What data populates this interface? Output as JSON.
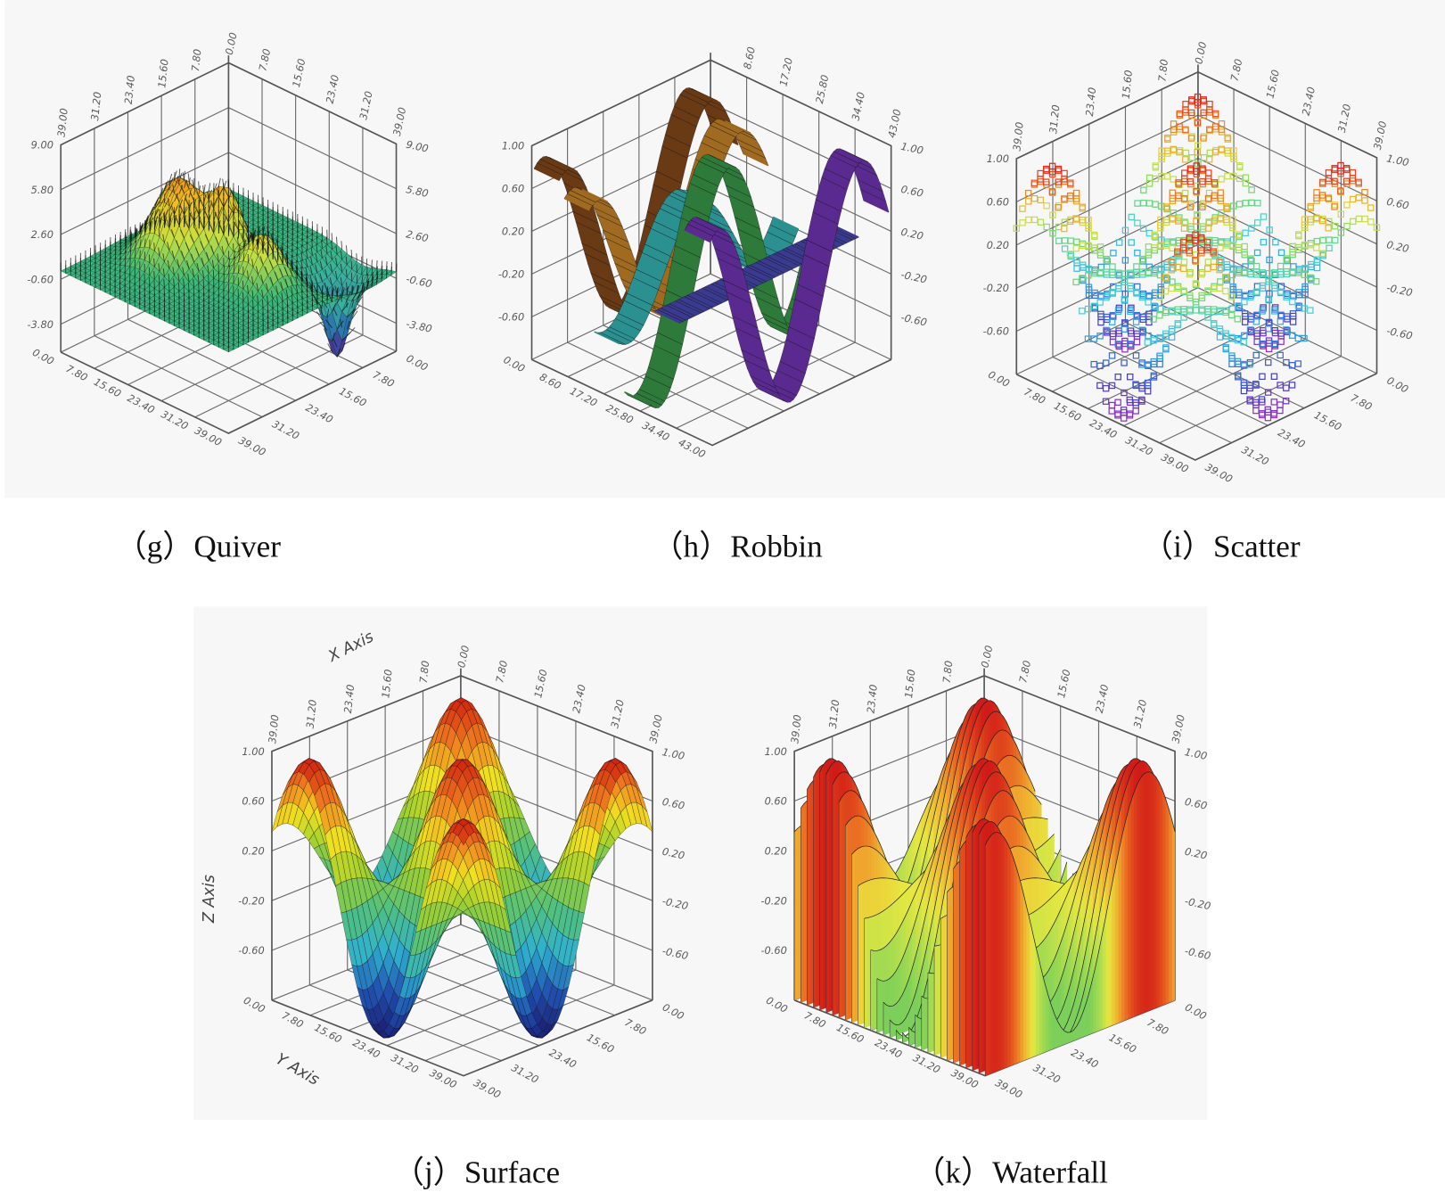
{
  "chart_data": [
    {
      "panel": "g",
      "caption": "（g）Quiver",
      "type": "quiver3d",
      "x_range": [
        0,
        39
      ],
      "y_range": [
        0,
        39
      ],
      "zlim": [
        -5.8,
        9.0
      ],
      "back_left_ticks": [
        "7.80",
        "15.60",
        "23.40",
        "31.20",
        "39.00"
      ],
      "back_right_ticks": [
        "0.00",
        "7.80",
        "15.60",
        "23.40",
        "31.20",
        "39.00"
      ],
      "front_left_ticks": [
        "0.00",
        "7.80",
        "15.60",
        "23.40",
        "31.20",
        "39.00"
      ],
      "front_right_ticks": [
        "0.00",
        "7.80",
        "15.60",
        "23.40",
        "31.20",
        "39.00"
      ],
      "z_ticks": [
        "9.00",
        "5.80",
        "2.60",
        "-0.60",
        "-3.80"
      ],
      "z_ticks_right": [
        "9.00",
        "5.80",
        "2.60",
        "-0.60",
        "-3.80"
      ],
      "bumps": [
        {
          "x": 11.7,
          "y": 23.4,
          "z": 6.0,
          "sigma": 4.3
        },
        {
          "x": 17.5,
          "y": 17.5,
          "z": 4.3,
          "sigma": 2.6
        },
        {
          "x": 27.3,
          "y": 19.5,
          "z": 3.7,
          "sigma": 3.5
        },
        {
          "x": 31.2,
          "y": 6.0,
          "z": -2.5,
          "sigma": 4.0
        },
        {
          "x": 33.0,
          "y": 7.8,
          "z": -4.0,
          "sigma": 1.8
        }
      ],
      "colors": [
        "#5a1a8a",
        "#2a6ab0",
        "#3ab0a0",
        "#3cb878",
        "#c8e040",
        "#f0c020",
        "#f07020",
        "#e02010"
      ]
    },
    {
      "panel": "h",
      "caption": "（h）Robbin",
      "type": "ribbon3d",
      "x_range": [
        0,
        43
      ],
      "y_range": [
        0,
        43
      ],
      "zlim": [
        -1.0,
        1.0
      ],
      "back_left_ticks": [],
      "back_right_ticks": [
        "8.60",
        "17.20",
        "25.80",
        "34.40",
        "43.00"
      ],
      "front_left_ticks": [
        "0.00",
        "8.60",
        "17.20",
        "25.80",
        "34.40",
        "43.00"
      ],
      "front_right_ticks": [],
      "z_ticks": [
        "1.00",
        "0.60",
        "0.20",
        "-0.20",
        "-0.60"
      ],
      "z_ticks_right": [
        "1.00",
        "0.60",
        "0.20",
        "-0.20",
        "-0.60"
      ],
      "function": {
        "amplitude": 1.0,
        "period": 34.4,
        "phase": 6.45
      },
      "ribbon_count": 6,
      "colors": [
        "#6a3a14",
        "#a06a20",
        "#2a9090",
        "#2e7a3a",
        "#3a3a90",
        "#5a2a90"
      ]
    },
    {
      "panel": "i",
      "caption": "（i）Scatter",
      "type": "scatter3d",
      "x_range": [
        0,
        39
      ],
      "y_range": [
        0,
        39
      ],
      "zlim": [
        -1.0,
        1.0
      ],
      "back_left_ticks": [
        "7.80",
        "15.60",
        "23.40",
        "31.20",
        "39.00"
      ],
      "back_right_ticks": [
        "0.00",
        "7.80",
        "15.60",
        "23.40",
        "31.20",
        "39.00"
      ],
      "front_left_ticks": [
        "0.00",
        "7.80",
        "15.60",
        "23.40",
        "31.20",
        "39.00"
      ],
      "front_right_ticks": [
        "0.00",
        "7.80",
        "15.60",
        "23.40",
        "31.20",
        "39.00"
      ],
      "z_ticks": [
        "1.00",
        "0.60",
        "0.20",
        "-0.20",
        "-0.60"
      ],
      "z_ticks_right": [
        "1.00",
        "0.60",
        "0.20",
        "-0.20",
        "-0.60"
      ],
      "function": {
        "amplitude": 1.0,
        "period": 31.2,
        "phase": 5.85
      },
      "colors": [
        "#a030c0",
        "#4040d0",
        "#3090e0",
        "#40d0e0",
        "#70d870",
        "#e0e040",
        "#f09020",
        "#e82020"
      ]
    },
    {
      "panel": "j",
      "caption": "（j）Surface",
      "type": "surface3d",
      "x_label": "X Axis",
      "y_label": "Y Axis",
      "z_label": "Z Axis",
      "x_range": [
        0,
        39
      ],
      "y_range": [
        0,
        39
      ],
      "zlim": [
        -1.0,
        1.0
      ],
      "back_left_ticks": [
        "7.80",
        "15.60",
        "23.40",
        "31.20",
        "39.00"
      ],
      "back_right_ticks": [
        "0.00",
        "7.80",
        "15.60",
        "23.40",
        "31.20",
        "39.00"
      ],
      "front_left_ticks": [
        "0.00",
        "7.80",
        "15.60",
        "23.40",
        "31.20",
        "39.00"
      ],
      "front_right_ticks": [
        "0.00",
        "7.80",
        "15.60",
        "23.40",
        "31.20",
        "39.00"
      ],
      "z_ticks": [
        "1.00",
        "0.60",
        "0.20",
        "-0.20",
        "-0.60"
      ],
      "z_ticks_right": [
        "1.00",
        "0.60",
        "0.20",
        "-0.20",
        "-0.60"
      ],
      "function": {
        "amplitude": 1.0,
        "period": 31.2,
        "phase": 5.85
      },
      "colors": [
        "#1a1a6e",
        "#2050b0",
        "#30b0d0",
        "#50c080",
        "#a0d030",
        "#f0e020",
        "#f08020",
        "#d02010"
      ]
    },
    {
      "panel": "k",
      "caption": "（k）Waterfall",
      "type": "waterfall3d",
      "x_range": [
        0,
        39
      ],
      "y_range": [
        0,
        39
      ],
      "zlim": [
        -1.0,
        1.0
      ],
      "back_left_ticks": [
        "7.80",
        "15.60",
        "23.40",
        "31.20",
        "39.00"
      ],
      "back_right_ticks": [
        "0.00",
        "7.80",
        "15.60",
        "23.40",
        "31.20",
        "39.00"
      ],
      "front_left_ticks": [
        "0.00",
        "7.80",
        "15.60",
        "23.40",
        "31.20",
        "39.00"
      ],
      "front_right_ticks": [
        "0.00",
        "7.80",
        "15.60",
        "23.40",
        "31.20",
        "39.00"
      ],
      "z_ticks": [
        "1.00",
        "0.60",
        "0.20",
        "-0.20",
        "-0.60"
      ],
      "z_ticks_right": [
        "1.00",
        "0.60",
        "0.20",
        "-0.20",
        "-0.60"
      ],
      "function": {
        "amplitude": 1.0,
        "period": 31.2,
        "phase": 5.85
      },
      "colors": [
        "#7ccf5a",
        "#7ccf5a",
        "#a8dc50",
        "#e8e840",
        "#f0b030",
        "#e86020",
        "#d01818"
      ]
    }
  ]
}
